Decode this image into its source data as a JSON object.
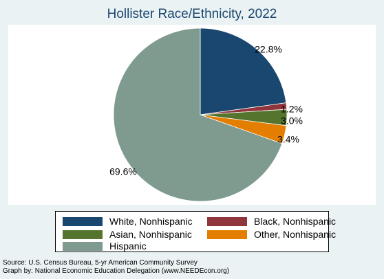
{
  "chart_data": {
    "type": "pie",
    "title": "Hollister Race/Ethnicity, 2022",
    "slices": [
      {
        "label": "White, Nonhispanic",
        "value": 22.8,
        "value_label": "22.8%",
        "color": "#1a476f"
      },
      {
        "label": "Black, Nonhispanic",
        "value": 1.2,
        "value_label": "1.2%",
        "color": "#90353b"
      },
      {
        "label": "Asian, Nonhispanic",
        "value": 3.0,
        "value_label": "3.0%",
        "color": "#55752f"
      },
      {
        "label": "Other, Nonhispanic",
        "value": 3.4,
        "value_label": "3.4%",
        "color": "#e37e00"
      },
      {
        "label": "Hispanic",
        "value": 69.6,
        "value_label": "69.6%",
        "color": "#7f9a8f"
      }
    ],
    "legend_position": "bottom",
    "start_angle": "12 o'clock",
    "direction": "clockwise"
  },
  "footer": {
    "source": "Source:  U.S. Census Bureau, 5-yr American Community Survey",
    "credit": "Graph by: National Economic Education Delegation (www.NEEDEcon.org)"
  }
}
